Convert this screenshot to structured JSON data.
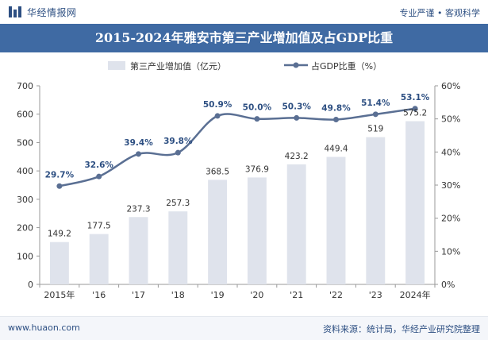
{
  "header": {
    "brand": "华经情报网",
    "slogan": "专业严谨 • 客观科学"
  },
  "title": "2015-2024年雅安市第三产业增加值及占GDP比重",
  "footer": {
    "website": "www.huaon.com",
    "source": "资料来源：统计局，华经产业研究院整理"
  },
  "colors": {
    "header_bg": "#3f6aa3",
    "bar": "#dfe3ec",
    "line": "#5a6f93",
    "brand": "#2d4f82"
  },
  "chart_data": {
    "type": "bar+line",
    "categories": [
      "2015年",
      "'16",
      "'17",
      "'18",
      "'19",
      "'20",
      "'21",
      "'22",
      "'23",
      "2024年"
    ],
    "series": [
      {
        "name": "第三产业增加值（亿元）",
        "type": "bar",
        "axis": "left",
        "values": [
          149.2,
          177.5,
          237.3,
          257.3,
          368.5,
          376.9,
          423.2,
          449.4,
          519,
          575.2
        ],
        "labels": [
          "149.2",
          "177.5",
          "237.3",
          "257.3",
          "368.5",
          "376.9",
          "423.2",
          "449.4",
          "519",
          "575.2"
        ]
      },
      {
        "name": "占GDP比重（%）",
        "type": "line",
        "axis": "right",
        "values": [
          29.7,
          32.6,
          39.4,
          39.8,
          50.9,
          50.0,
          50.3,
          49.8,
          51.4,
          53.1
        ],
        "labels": [
          "29.7%",
          "32.6%",
          "39.4%",
          "39.8%",
          "50.9%",
          "50.0%",
          "50.3%",
          "49.8%",
          "51.4%",
          "53.1%"
        ]
      }
    ],
    "y_left": {
      "min": 0,
      "max": 700,
      "ticks": [
        "0",
        "100",
        "200",
        "300",
        "400",
        "500",
        "600",
        "700"
      ]
    },
    "y_right": {
      "min": 0,
      "max": 60,
      "ticks": [
        "0%",
        "10%",
        "20%",
        "30%",
        "40%",
        "50%",
        "60%"
      ]
    },
    "grid": false,
    "legend_position": "top-center"
  }
}
